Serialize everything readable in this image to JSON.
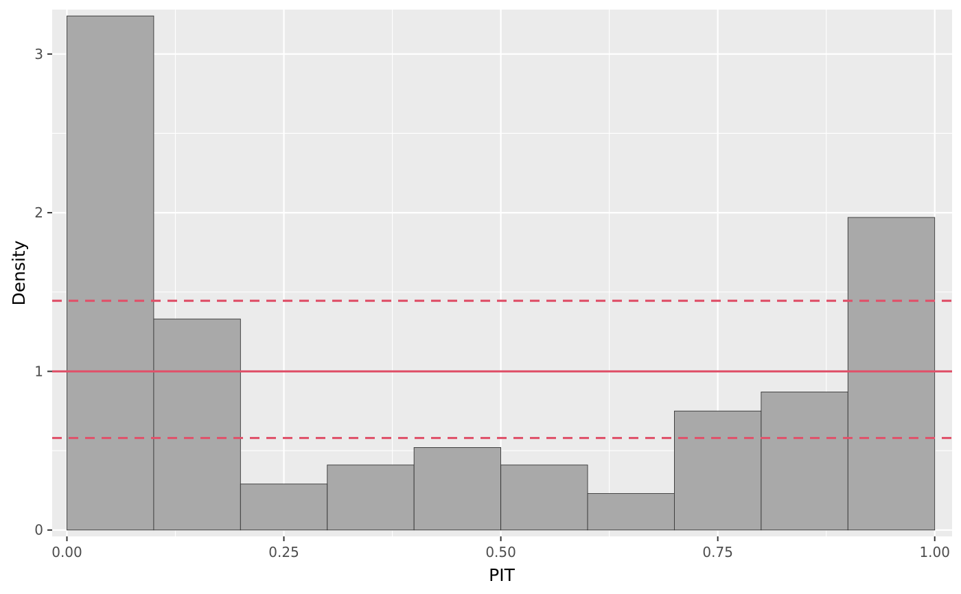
{
  "chart_data": {
    "type": "bar",
    "histogram": true,
    "title": "",
    "xlabel": "PIT",
    "ylabel": "Density",
    "bin_edges": [
      0.0,
      0.1,
      0.2,
      0.3,
      0.4,
      0.5,
      0.6,
      0.7,
      0.8,
      0.9,
      1.0
    ],
    "values": [
      3.24,
      1.33,
      0.29,
      0.41,
      0.52,
      0.41,
      0.23,
      0.75,
      0.87,
      1.97
    ],
    "xlim": [
      -0.017,
      1.02
    ],
    "ylim": [
      -0.04,
      3.28
    ],
    "x_ticks": [
      0,
      0.25,
      0.5,
      0.75,
      1
    ],
    "x_tick_labels": [
      "0.00",
      "0.25",
      "0.50",
      "0.75",
      "1.00"
    ],
    "y_ticks": [
      0,
      1,
      2,
      3
    ],
    "y_tick_labels": [
      "0",
      "1",
      "2",
      "3"
    ],
    "reference_lines": [
      {
        "y": 1.0,
        "style": "solid"
      },
      {
        "y": 1.445,
        "style": "dashed"
      },
      {
        "y": 0.58,
        "style": "dashed"
      }
    ],
    "grid": true,
    "colors": {
      "panel_background": "#ebebeb",
      "grid_major": "#ffffff",
      "bar_fill": "#a9a9a9",
      "bar_outline": "#333333",
      "reference_line": "#df536b"
    }
  }
}
